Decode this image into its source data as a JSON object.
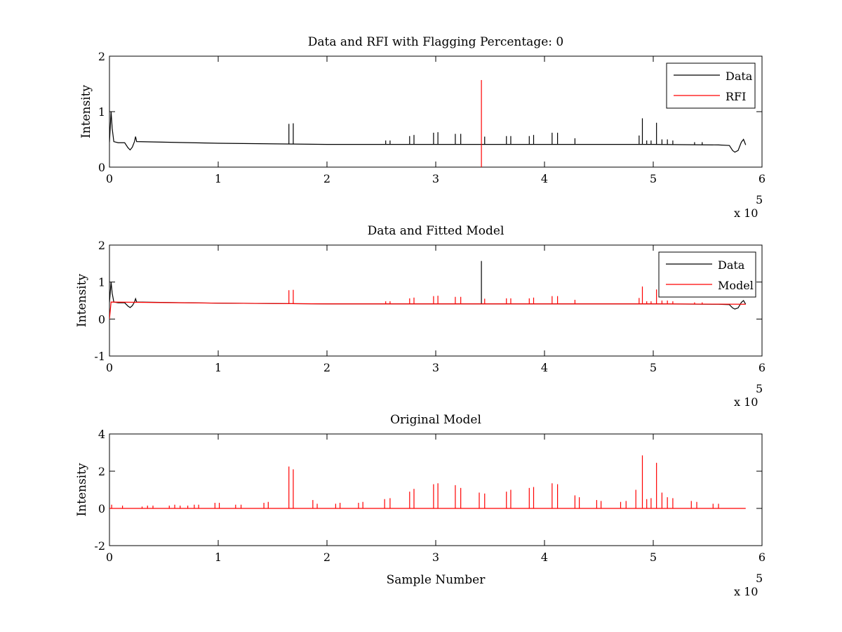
{
  "chart_data": [
    {
      "type": "line",
      "title": "Data and RFI with Flagging Percentage: 0",
      "xlabel": "",
      "ylabel": "Intensity",
      "xlim": [
        0,
        600000
      ],
      "ylim": [
        0,
        2
      ],
      "xticks": [
        0,
        1,
        2,
        3,
        4,
        5,
        6
      ],
      "yticks": [
        0,
        1,
        2
      ],
      "x_multiplier": "x 10",
      "x_multiplier_exp": "5",
      "grid": false,
      "legend_position": "top-right",
      "series": [
        {
          "name": "Data",
          "color": "#000000",
          "shape": [
            [
              0,
              0.45
            ],
            [
              1500,
              1.0
            ],
            [
              2500,
              0.7
            ],
            [
              4000,
              0.46
            ],
            [
              8000,
              0.44
            ],
            [
              14000,
              0.44
            ],
            [
              17000,
              0.35
            ],
            [
              19000,
              0.31
            ],
            [
              21000,
              0.36
            ],
            [
              23000,
              0.46
            ],
            [
              24000,
              0.55
            ],
            [
              25000,
              0.46
            ],
            [
              100000,
              0.43
            ],
            [
              200000,
              0.41
            ],
            [
              300000,
              0.41
            ],
            [
              400000,
              0.41
            ],
            [
              500000,
              0.41
            ],
            [
              560000,
              0.4
            ],
            [
              570000,
              0.39
            ],
            [
              573000,
              0.3
            ],
            [
              575000,
              0.27
            ],
            [
              578000,
              0.3
            ],
            [
              580000,
              0.4
            ],
            [
              581000,
              0.45
            ],
            [
              583000,
              0.5
            ],
            [
              585000,
              0.4
            ]
          ],
          "spikes": [
            [
              165000,
              0.78
            ],
            [
              169000,
              0.79
            ],
            [
              254000,
              0.48
            ],
            [
              258000,
              0.48
            ],
            [
              276000,
              0.56
            ],
            [
              280000,
              0.58
            ],
            [
              298000,
              0.62
            ],
            [
              302000,
              0.63
            ],
            [
              318000,
              0.6
            ],
            [
              323000,
              0.6
            ],
            [
              345000,
              0.55
            ],
            [
              365000,
              0.56
            ],
            [
              369000,
              0.56
            ],
            [
              386000,
              0.56
            ],
            [
              390000,
              0.58
            ],
            [
              407000,
              0.62
            ],
            [
              412000,
              0.62
            ],
            [
              428000,
              0.52
            ],
            [
              487000,
              0.57
            ],
            [
              490000,
              0.88
            ],
            [
              494000,
              0.48
            ],
            [
              498000,
              0.48
            ],
            [
              503000,
              0.8
            ],
            [
              508000,
              0.5
            ],
            [
              513000,
              0.5
            ],
            [
              518000,
              0.48
            ],
            [
              538000,
              0.45
            ],
            [
              545000,
              0.45
            ]
          ]
        },
        {
          "name": "RFI",
          "color": "#ff0000",
          "spikes": [
            [
              342000,
              1.57
            ]
          ]
        }
      ]
    },
    {
      "type": "line",
      "title": "Data and Fitted Model",
      "xlabel": "",
      "ylabel": "Intensity",
      "xlim": [
        0,
        600000
      ],
      "ylim": [
        -1,
        2
      ],
      "xticks": [
        0,
        1,
        2,
        3,
        4,
        5,
        6
      ],
      "yticks": [
        -1,
        0,
        1,
        2
      ],
      "x_multiplier": "x 10",
      "x_multiplier_exp": "5",
      "grid": false,
      "legend_position": "top-right",
      "series": [
        {
          "name": "Data",
          "color": "#000000",
          "shape": [
            [
              0,
              0.45
            ],
            [
              1500,
              1.0
            ],
            [
              2500,
              0.7
            ],
            [
              4000,
              0.46
            ],
            [
              8000,
              0.44
            ],
            [
              14000,
              0.44
            ],
            [
              17000,
              0.35
            ],
            [
              19000,
              0.31
            ],
            [
              21000,
              0.36
            ],
            [
              23000,
              0.46
            ],
            [
              24000,
              0.55
            ],
            [
              25000,
              0.46
            ],
            [
              100000,
              0.43
            ],
            [
              200000,
              0.41
            ],
            [
              300000,
              0.41
            ],
            [
              400000,
              0.41
            ],
            [
              500000,
              0.41
            ],
            [
              560000,
              0.4
            ],
            [
              570000,
              0.39
            ],
            [
              573000,
              0.3
            ],
            [
              575000,
              0.27
            ],
            [
              578000,
              0.3
            ],
            [
              580000,
              0.4
            ],
            [
              581000,
              0.45
            ],
            [
              583000,
              0.5
            ],
            [
              585000,
              0.4
            ]
          ],
          "spikes": [
            [
              342000,
              1.57
            ]
          ]
        },
        {
          "name": "Model",
          "color": "#ff0000",
          "shape": [
            [
              0,
              0.0
            ],
            [
              1500,
              0.46
            ],
            [
              100000,
              0.43
            ],
            [
              200000,
              0.41
            ],
            [
              300000,
              0.41
            ],
            [
              400000,
              0.41
            ],
            [
              500000,
              0.41
            ],
            [
              585000,
              0.4
            ]
          ],
          "spikes": [
            [
              165000,
              0.78
            ],
            [
              169000,
              0.79
            ],
            [
              254000,
              0.48
            ],
            [
              258000,
              0.48
            ],
            [
              276000,
              0.56
            ],
            [
              280000,
              0.58
            ],
            [
              298000,
              0.62
            ],
            [
              302000,
              0.63
            ],
            [
              318000,
              0.6
            ],
            [
              323000,
              0.6
            ],
            [
              345000,
              0.55
            ],
            [
              365000,
              0.56
            ],
            [
              369000,
              0.56
            ],
            [
              386000,
              0.56
            ],
            [
              390000,
              0.58
            ],
            [
              407000,
              0.62
            ],
            [
              412000,
              0.62
            ],
            [
              428000,
              0.52
            ],
            [
              487000,
              0.57
            ],
            [
              490000,
              0.88
            ],
            [
              494000,
              0.48
            ],
            [
              498000,
              0.48
            ],
            [
              503000,
              0.8
            ],
            [
              508000,
              0.5
            ],
            [
              513000,
              0.5
            ],
            [
              518000,
              0.48
            ],
            [
              538000,
              0.45
            ],
            [
              545000,
              0.45
            ]
          ]
        }
      ]
    },
    {
      "type": "line",
      "title": "Original Model",
      "xlabel": "Sample Number",
      "ylabel": "Intensity",
      "xlim": [
        0,
        600000
      ],
      "ylim": [
        -2,
        4
      ],
      "xticks": [
        0,
        1,
        2,
        3,
        4,
        5,
        6
      ],
      "yticks": [
        -2,
        0,
        2,
        4
      ],
      "x_multiplier": "x 10",
      "x_multiplier_exp": "5",
      "grid": false,
      "legend_position": "none",
      "series": [
        {
          "color": "#ff0000",
          "shape": [
            [
              0,
              0.0
            ],
            [
              585000,
              0.0
            ]
          ],
          "spikes": [
            [
              2000,
              0.2
            ],
            [
              12000,
              0.15
            ],
            [
              30000,
              0.1
            ],
            [
              35000,
              0.15
            ],
            [
              40000,
              0.15
            ],
            [
              55000,
              0.15
            ],
            [
              60000,
              0.2
            ],
            [
              65000,
              0.15
            ],
            [
              72000,
              0.15
            ],
            [
              78000,
              0.2
            ],
            [
              82000,
              0.2
            ],
            [
              97000,
              0.3
            ],
            [
              101000,
              0.3
            ],
            [
              116000,
              0.2
            ],
            [
              121000,
              0.2
            ],
            [
              142000,
              0.3
            ],
            [
              146000,
              0.35
            ],
            [
              165000,
              2.25
            ],
            [
              169000,
              2.1
            ],
            [
              187000,
              0.45
            ],
            [
              191000,
              0.25
            ],
            [
              208000,
              0.25
            ],
            [
              212000,
              0.3
            ],
            [
              229000,
              0.3
            ],
            [
              233000,
              0.35
            ],
            [
              253000,
              0.5
            ],
            [
              258000,
              0.55
            ],
            [
              276000,
              0.9
            ],
            [
              280000,
              1.05
            ],
            [
              298000,
              1.3
            ],
            [
              302000,
              1.35
            ],
            [
              318000,
              1.25
            ],
            [
              323000,
              1.1
            ],
            [
              340000,
              0.85
            ],
            [
              345000,
              0.8
            ],
            [
              365000,
              0.9
            ],
            [
              369000,
              1.0
            ],
            [
              386000,
              1.1
            ],
            [
              390000,
              1.15
            ],
            [
              407000,
              1.35
            ],
            [
              412000,
              1.3
            ],
            [
              428000,
              0.7
            ],
            [
              432000,
              0.6
            ],
            [
              448000,
              0.45
            ],
            [
              452000,
              0.4
            ],
            [
              470000,
              0.35
            ],
            [
              475000,
              0.4
            ],
            [
              484000,
              1.0
            ],
            [
              490000,
              2.85
            ],
            [
              494000,
              0.5
            ],
            [
              498000,
              0.55
            ],
            [
              503000,
              2.45
            ],
            [
              508000,
              0.85
            ],
            [
              513000,
              0.6
            ],
            [
              518000,
              0.55
            ],
            [
              535000,
              0.4
            ],
            [
              540000,
              0.35
            ],
            [
              555000,
              0.25
            ],
            [
              560000,
              0.25
            ]
          ]
        }
      ]
    }
  ]
}
